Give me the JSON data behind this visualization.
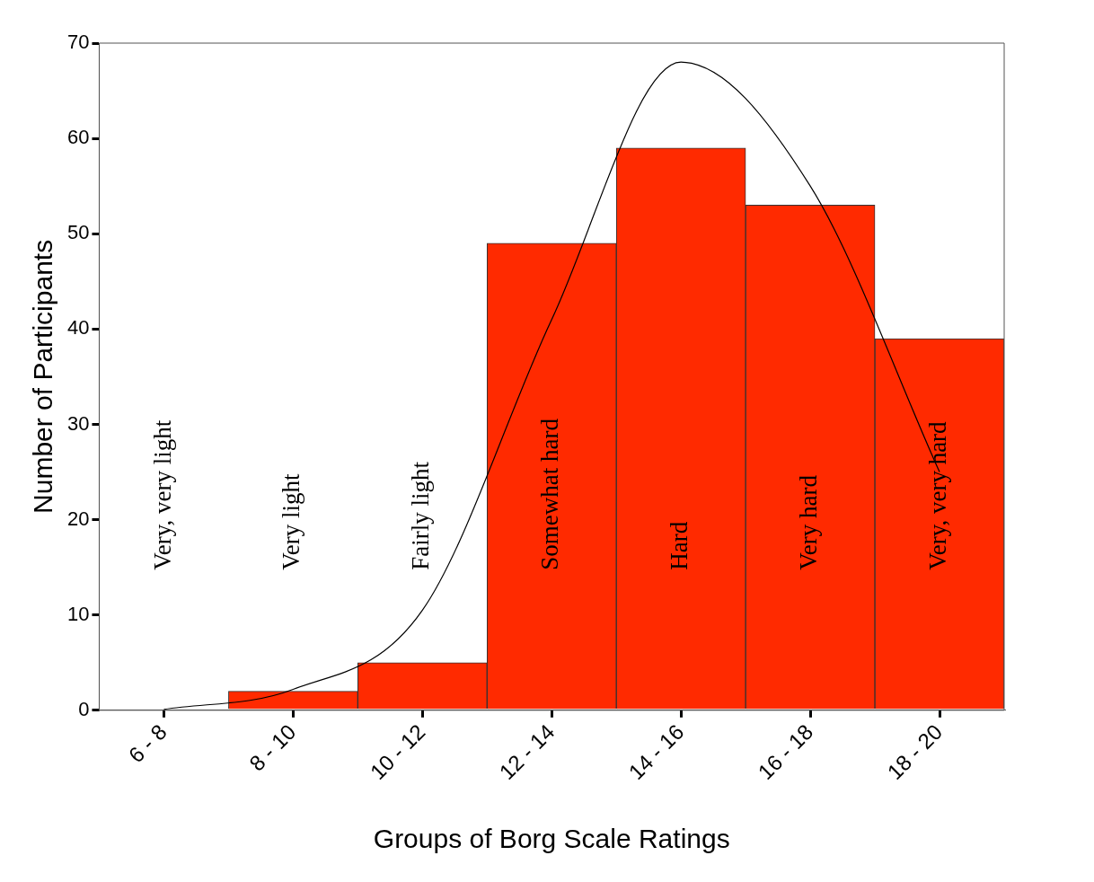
{
  "chart_data": {
    "type": "bar",
    "xlabel": "Groups of Borg Scale Ratings",
    "ylabel": "Number of Participants",
    "categories": [
      "6 - 8",
      "8 - 10",
      "10 - 12",
      "12 - 14",
      "14 - 16",
      "16 - 18",
      "18 - 20"
    ],
    "values": [
      0,
      2,
      5,
      49,
      59,
      53,
      39
    ],
    "color": "#ff2a00",
    "series": [
      {
        "type": "line",
        "color": "#000000",
        "values": [
          0.1,
          2.2,
          10.5,
          41,
          68,
          55,
          25
        ]
      }
    ],
    "ylim": [
      0,
      70
    ],
    "yticks": [
      0,
      10,
      20,
      30,
      40,
      50,
      60,
      70
    ],
    "annotations": [
      "Very, very light",
      "Very light",
      "Fairly light",
      "Somewhat hard",
      "Hard",
      "Very hard",
      "Very, very hard"
    ],
    "grid": false,
    "legend": false,
    "marker": "none",
    "line_style": "solid"
  }
}
